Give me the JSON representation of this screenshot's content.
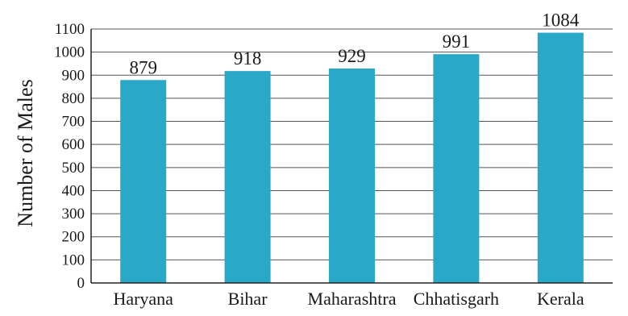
{
  "chart_data": {
    "type": "bar",
    "title": "",
    "xlabel": "",
    "ylabel": "Number of Males",
    "categories": [
      "Haryana",
      "Bihar",
      "Maharashtra",
      "Chhatisgarh",
      "Kerala"
    ],
    "values": [
      879,
      918,
      929,
      991,
      1084
    ],
    "data_labels": [
      "879",
      "918",
      "929",
      "991",
      "1084"
    ],
    "ylim": [
      0,
      1100
    ],
    "yticks": [
      0,
      100,
      200,
      300,
      400,
      500,
      600,
      700,
      800,
      900,
      1000,
      1100
    ],
    "ytick_labels": [
      "0",
      "100",
      "200",
      "300",
      "400",
      "500",
      "600",
      "700",
      "800",
      "900",
      "1000",
      "1100"
    ],
    "grid": true,
    "bar_color": "#2aa8c8"
  }
}
